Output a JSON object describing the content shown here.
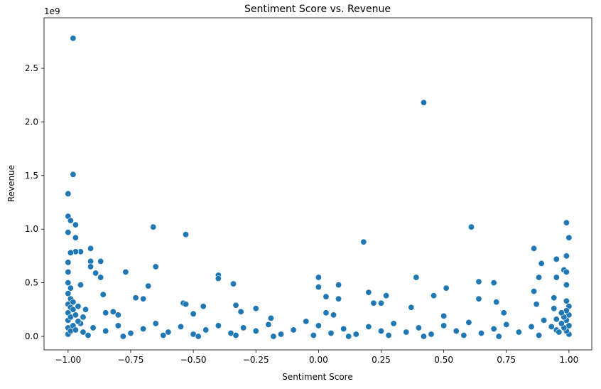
{
  "chart_data": {
    "type": "scatter",
    "title": "Sentiment Score vs. Revenue",
    "x_label": "Sentiment Score",
    "y_label": "Revenue",
    "y_offset_label": "1e9",
    "color": "#1f77b4",
    "xlim": [
      -1.096,
      1.091
    ],
    "ylim": [
      -0.126,
      2.971
    ],
    "xticks": [
      {
        "value": -1,
        "label": "−1.00"
      },
      {
        "value": -0.75,
        "label": "−0.75"
      },
      {
        "value": -0.5,
        "label": "−0.50"
      },
      {
        "value": -0.25,
        "label": "−0.25"
      },
      {
        "value": 0,
        "label": "0.00"
      },
      {
        "value": 0.25,
        "label": "0.25"
      },
      {
        "value": 0.5,
        "label": "0.50"
      },
      {
        "value": 0.75,
        "label": "0.75"
      },
      {
        "value": 1,
        "label": "1.00"
      }
    ],
    "yticks": [
      {
        "value": 0,
        "label": "0.0"
      },
      0.5,
      {
        "value": 1,
        "label": "1.0"
      },
      1.5,
      {
        "value": 2,
        "label": "2.0"
      },
      2.5
    ],
    "x": [
      -0.98,
      0.42,
      -0.98,
      -1.0,
      -1.0,
      -0.99,
      -0.97,
      -0.66,
      0.61,
      0.99,
      -0.53,
      -1.0,
      -0.97,
      1.0,
      0.18,
      0.86,
      -0.91,
      -0.95,
      -0.97,
      -0.99,
      0.99,
      -0.91,
      -0.87,
      0.95,
      0.89,
      -0.65,
      -0.91,
      -0.77,
      0.98,
      0.99,
      -0.89,
      -0.4,
      -0.4,
      0.0,
      0.39,
      0.88,
      0.95,
      -0.87,
      0.64,
      0.7,
      -0.95,
      -0.68,
      0.08,
      0.0,
      0.51,
      0.99,
      -0.34,
      0.2,
      0.86,
      -0.86,
      0.46,
      0.27,
      -0.73,
      -0.7,
      0.03,
      0.08,
      0.64,
      0.94,
      -0.54,
      -0.53,
      0.22,
      0.25,
      0.71,
      0.87,
      -0.46,
      -0.33,
      0.37,
      -0.25,
      -0.31,
      0.74,
      -0.5,
      -0.19,
      0.03,
      0.06,
      0.5,
      -0.8,
      -0.85,
      -0.82,
      -0.95,
      -0.9,
      -0.85,
      -0.8,
      -0.75,
      -0.7,
      -0.65,
      -0.6,
      -0.55,
      -0.5,
      -0.45,
      -0.4,
      -0.35,
      -0.3,
      -0.25,
      -0.2,
      -0.15,
      -0.1,
      -0.05,
      0.0,
      0.05,
      0.1,
      0.15,
      0.2,
      0.25,
      0.3,
      0.35,
      0.4,
      0.45,
      0.5,
      0.55,
      0.6,
      0.65,
      0.7,
      0.75,
      0.8,
      0.85,
      0.9,
      0.95,
      -0.92,
      -0.78,
      -0.62,
      -0.48,
      -0.33,
      -0.18,
      -0.02,
      0.12,
      0.28,
      0.42,
      0.58,
      0.72,
      0.88,
      -1.0,
      -1.0,
      -1.0,
      -1.0,
      -1.0,
      -1.0,
      -1.0,
      -1.0,
      -1.0,
      -0.99,
      -0.99,
      -0.99,
      -0.99,
      -0.99,
      -0.98,
      -0.98,
      -0.98,
      -0.97,
      -0.97,
      -0.96,
      -0.96,
      -0.94,
      -0.94,
      -0.93,
      1.0,
      1.0,
      1.0,
      1.0,
      0.99,
      0.99,
      0.99,
      0.99,
      0.98,
      0.98,
      0.97,
      0.97,
      0.96,
      0.95,
      0.94,
      0.93
    ],
    "values": [
      2.78,
      2.18,
      1.51,
      1.33,
      1.12,
      1.08,
      1.04,
      1.02,
      1.02,
      1.06,
      0.95,
      0.97,
      0.92,
      0.92,
      0.88,
      0.82,
      0.82,
      0.79,
      0.79,
      0.78,
      0.75,
      0.7,
      0.7,
      0.72,
      0.68,
      0.65,
      0.65,
      0.6,
      0.62,
      0.6,
      0.59,
      0.57,
      0.54,
      0.55,
      0.55,
      0.55,
      0.55,
      0.55,
      0.51,
      0.5,
      0.48,
      0.47,
      0.48,
      0.46,
      0.45,
      0.48,
      0.49,
      0.41,
      0.42,
      0.39,
      0.38,
      0.38,
      0.36,
      0.35,
      0.37,
      0.35,
      0.35,
      0.36,
      0.31,
      0.3,
      0.31,
      0.31,
      0.32,
      0.3,
      0.28,
      0.29,
      0.27,
      0.26,
      0.23,
      0.22,
      0.21,
      0.17,
      0.22,
      0.2,
      0.19,
      0.2,
      0.22,
      0.23,
      0.12,
      0.08,
      0.05,
      0.1,
      0.03,
      0.07,
      0.12,
      0.04,
      0.09,
      0.02,
      0.06,
      0.1,
      0.03,
      0.08,
      0.05,
      0.11,
      0.02,
      0.06,
      0.14,
      0.1,
      0.03,
      0.07,
      0.02,
      0.09,
      0.05,
      0.12,
      0.04,
      0.08,
      0.02,
      0.1,
      0.05,
      0.13,
      0.03,
      0.07,
      0.11,
      0.04,
      0.09,
      0.15,
      0.06,
      0.01,
      0.0,
      0.01,
      0.0,
      0.01,
      0.0,
      0.01,
      0.0,
      0.01,
      0.0,
      0.01,
      0.0,
      0.01,
      0.02,
      0.08,
      0.15,
      0.22,
      0.3,
      0.4,
      0.5,
      0.6,
      0.69,
      0.05,
      0.18,
      0.27,
      0.35,
      0.45,
      0.1,
      0.25,
      0.32,
      0.06,
      0.2,
      0.14,
      0.28,
      0.04,
      0.18,
      0.25,
      0.02,
      0.1,
      0.2,
      0.28,
      0.05,
      0.15,
      0.24,
      0.33,
      0.08,
      0.18,
      0.12,
      0.22,
      0.04,
      0.16,
      0.26,
      0.09
    ]
  }
}
